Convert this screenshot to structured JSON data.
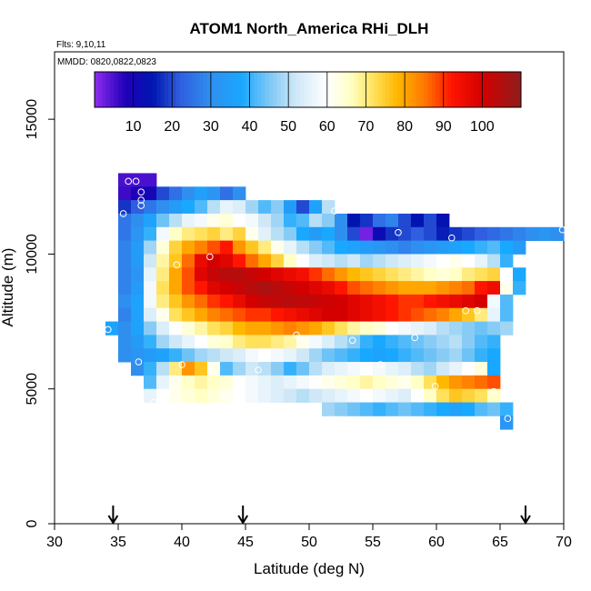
{
  "chart_data": {
    "type": "heatmap",
    "title": "ATOM1 North_America RHi_DLH",
    "notes": [
      "Flts: 9,10,11",
      "MMDD: 0820,0822,0823"
    ],
    "xlabel": "Latitude (deg N)",
    "ylabel": "Altitude (m)",
    "xlim": [
      30,
      70
    ],
    "ylim": [
      0,
      17500
    ],
    "x_ticks": [
      30,
      35,
      40,
      45,
      50,
      55,
      60,
      65,
      70
    ],
    "y_ticks": [
      0,
      5000,
      10000,
      15000
    ],
    "cell_size": {
      "lat": 1,
      "alt": 500
    },
    "colorbar": {
      "range": [
        0,
        110
      ],
      "ticks": [
        10,
        20,
        30,
        40,
        50,
        60,
        70,
        80,
        90,
        100
      ],
      "divisions": [
        10,
        20,
        30,
        40,
        50,
        60,
        70,
        80,
        90,
        100
      ],
      "stops": [
        {
          "v": 0,
          "c": "#8f2cf0"
        },
        {
          "v": 8,
          "c": "#1f00b8"
        },
        {
          "v": 15,
          "c": "#0015b0"
        },
        {
          "v": 22,
          "c": "#2f5ee0"
        },
        {
          "v": 30,
          "c": "#2f8fef"
        },
        {
          "v": 38,
          "c": "#19a8ff"
        },
        {
          "v": 45,
          "c": "#7cc7f5"
        },
        {
          "v": 52,
          "c": "#cfe8f7"
        },
        {
          "v": 60,
          "c": "#ffffff"
        },
        {
          "v": 66,
          "c": "#ffffc6"
        },
        {
          "v": 72,
          "c": "#ffe15c"
        },
        {
          "v": 78,
          "c": "#ffb800"
        },
        {
          "v": 85,
          "c": "#ff7a00"
        },
        {
          "v": 92,
          "c": "#ff1500"
        },
        {
          "v": 100,
          "c": "#d40000"
        },
        {
          "v": 110,
          "c": "#8f1d1d"
        }
      ]
    },
    "rows": [
      {
        "alt": 12500,
        "lat0": 35,
        "values": [
          5,
          5,
          5
        ]
      },
      {
        "alt": 12000,
        "lat0": 35,
        "values": [
          6,
          8,
          10,
          20,
          25,
          30,
          35,
          32,
          25,
          30
        ]
      },
      {
        "alt": 11500,
        "lat0": 35,
        "values": [
          18,
          22,
          26,
          30,
          34,
          38,
          42,
          50,
          56,
          54,
          48,
          42,
          46,
          34,
          20,
          36,
          50
        ]
      },
      {
        "alt": 11000,
        "lat0": 35,
        "values": [
          26,
          30,
          36,
          44,
          50,
          56,
          58,
          62,
          64,
          60,
          58,
          52,
          48,
          40,
          42,
          50,
          46,
          30,
          15,
          18,
          25,
          28,
          20,
          15,
          20,
          14
        ]
      },
      {
        "alt": 10500,
        "lat0": 35,
        "values": [
          26,
          32,
          40,
          58,
          66,
          70,
          72,
          74,
          70,
          74,
          62,
          55,
          50,
          46,
          38,
          34,
          38,
          30,
          20,
          2,
          12,
          18,
          20,
          22,
          20,
          16,
          18,
          20,
          22,
          24,
          26,
          28,
          30,
          32,
          30
        ]
      },
      {
        "alt": 10000,
        "lat0": 35,
        "values": [
          28,
          34,
          48,
          64,
          74,
          80,
          84,
          88,
          92,
          82,
          76,
          70,
          62,
          56,
          50,
          46,
          42,
          38,
          36,
          34,
          32,
          30,
          28,
          30,
          32,
          34,
          36,
          38,
          40,
          42,
          38,
          34
        ]
      },
      {
        "alt": 9500,
        "lat0": 35,
        "values": [
          28,
          34,
          52,
          68,
          76,
          86,
          96,
          100,
          98,
          92,
          86,
          80,
          74,
          66,
          60,
          54,
          52,
          50,
          52,
          48,
          50,
          52,
          54,
          56,
          58,
          60,
          62,
          60,
          56,
          50,
          40
        ]
      },
      {
        "alt": 9000,
        "lat0": 35,
        "values": [
          28,
          32,
          56,
          70,
          80,
          88,
          98,
          102,
          104,
          104,
          102,
          100,
          98,
          96,
          94,
          90,
          86,
          82,
          78,
          76,
          74,
          72,
          70,
          68,
          66,
          64,
          66,
          70,
          72,
          74,
          60,
          38
        ]
      },
      {
        "alt": 8500,
        "lat0": 35,
        "values": [
          28,
          34,
          58,
          72,
          80,
          88,
          92,
          98,
          100,
          102,
          104,
          106,
          104,
          102,
          100,
          98,
          96,
          92,
          88,
          86,
          84,
          82,
          80,
          80,
          80,
          82,
          84,
          86,
          92,
          95,
          62,
          40
        ]
      },
      {
        "alt": 8000,
        "lat0": 35,
        "values": [
          30,
          36,
          58,
          70,
          76,
          82,
          86,
          90,
          92,
          96,
          100,
          102,
          103,
          104,
          103,
          102,
          101,
          100,
          98,
          96,
          94,
          92,
          90,
          90,
          92,
          94,
          96,
          98,
          100,
          58,
          42
        ]
      },
      {
        "alt": 7500,
        "lat0": 35,
        "values": [
          28,
          36,
          54,
          62,
          72,
          76,
          80,
          84,
          86,
          88,
          90,
          90,
          92,
          94,
          96,
          98,
          100,
          100,
          98,
          96,
          94,
          92,
          90,
          88,
          86,
          84,
          80,
          76,
          70,
          56,
          42
        ]
      },
      {
        "alt": 7000,
        "lat0": 34,
        "values": [
          36,
          30,
          36,
          46,
          54,
          60,
          64,
          68,
          72,
          74,
          78,
          80,
          80,
          82,
          84,
          82,
          80,
          76,
          72,
          68,
          66,
          64,
          60,
          58,
          56,
          54,
          50,
          48,
          46,
          44,
          46,
          48
        ]
      },
      {
        "alt": 6500,
        "lat0": 35,
        "values": [
          30,
          34,
          40,
          48,
          52,
          56,
          60,
          64,
          66,
          70,
          72,
          72,
          70,
          68,
          62,
          58,
          54,
          50,
          46,
          40,
          38,
          40,
          42,
          44,
          46,
          48,
          50,
          46,
          42,
          40
        ]
      },
      {
        "alt": 6000,
        "lat0": 35,
        "values": [
          30,
          32,
          34,
          36,
          40,
          44,
          48,
          50,
          52,
          54,
          58,
          60,
          58,
          56,
          52,
          48,
          44,
          42,
          40,
          38,
          36,
          38,
          40,
          42,
          44,
          46,
          48,
          44,
          40,
          38
        ]
      },
      {
        "alt": 5500,
        "lat0": 36,
        "values": [
          30,
          40,
          50,
          70,
          82,
          76,
          62,
          42,
          48,
          52,
          50,
          46,
          40,
          44,
          50,
          54,
          56,
          58,
          60,
          58,
          56,
          54,
          50,
          48,
          52,
          56,
          60,
          64,
          38
        ]
      },
      {
        "alt": 5000,
        "lat0": 37,
        "values": [
          42,
          56,
          62,
          66,
          68,
          66,
          64,
          60,
          58,
          56,
          54,
          56,
          58,
          60,
          62,
          64,
          66,
          68,
          66,
          64,
          62,
          66,
          72,
          78,
          82,
          84,
          86,
          88
        ]
      },
      {
        "alt": 4500,
        "lat0": 37,
        "values": [
          56,
          60,
          62,
          64,
          66,
          64,
          62,
          60,
          58,
          56,
          54,
          52,
          50,
          52,
          54,
          56,
          58,
          60,
          58,
          56,
          54,
          60,
          66,
          72,
          76,
          74,
          72,
          66
        ]
      },
      {
        "alt": 4000,
        "lat0": 51,
        "values": [
          48,
          46,
          44,
          42,
          40,
          42,
          44,
          42,
          40,
          38,
          36,
          38,
          42,
          44,
          40
        ]
      },
      {
        "alt": 3500,
        "lat0": 65,
        "values": [
          32
        ]
      }
    ],
    "flight_points": [
      [
        35.8,
        12.7
      ],
      [
        36.4,
        12.7
      ],
      [
        36.8,
        12.3
      ],
      [
        36.8,
        12.0
      ],
      [
        36.8,
        11.8
      ],
      [
        35.4,
        11.5
      ],
      [
        39.6,
        9.6
      ],
      [
        42.2,
        9.9
      ],
      [
        52.0,
        11.6
      ],
      [
        57.0,
        10.8
      ],
      [
        61.2,
        10.6
      ],
      [
        69.9,
        10.9
      ],
      [
        34.2,
        7.2
      ],
      [
        36.6,
        6.0
      ],
      [
        40.0,
        5.9
      ],
      [
        43.3,
        6.8
      ],
      [
        46.0,
        5.7
      ],
      [
        49.0,
        7.0
      ],
      [
        50.4,
        5.3
      ],
      [
        53.4,
        6.8
      ],
      [
        55.6,
        5.9
      ],
      [
        58.3,
        6.9
      ],
      [
        59.9,
        5.1
      ],
      [
        62.3,
        7.9
      ],
      [
        63.2,
        7.9
      ],
      [
        64.5,
        4.9
      ],
      [
        65.6,
        3.9
      ],
      [
        37.8,
        4.5
      ],
      [
        43.5,
        4.7
      ]
    ],
    "flight_points_units": {
      "lat": "deg N",
      "alt": "km"
    },
    "arrows_lat": [
      34.6,
      44.8,
      67.0
    ]
  }
}
